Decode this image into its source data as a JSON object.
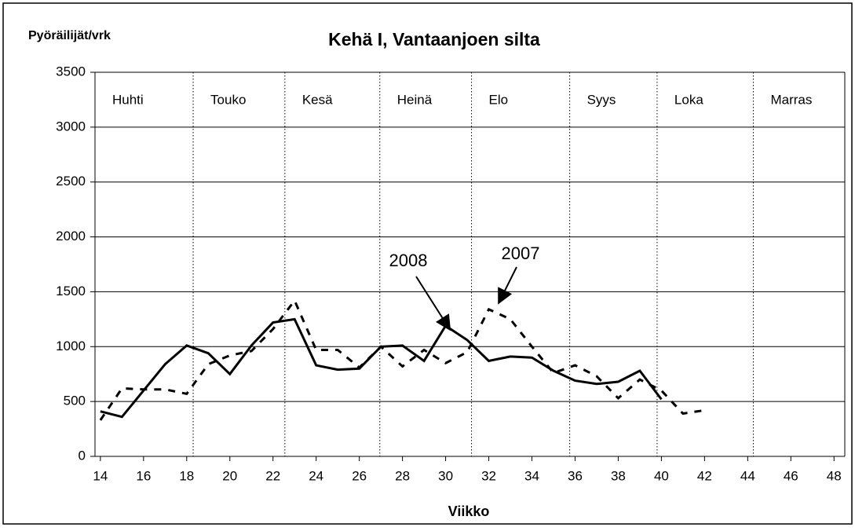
{
  "chart_data": {
    "type": "line",
    "title": "Kehä I, Vantaanjoen silta",
    "y_label": "Pyöräilijät/vrk",
    "x_label": "Viikko",
    "series": [
      {
        "name": "2008",
        "color": "#000000",
        "dash": "solid",
        "x": [
          14,
          15,
          16,
          17,
          18,
          19,
          20,
          21,
          22,
          23,
          24,
          25,
          26,
          27,
          28,
          29,
          30,
          31,
          32,
          33,
          34,
          35,
          36,
          37,
          38,
          39,
          40
        ],
        "values": [
          410,
          360,
          600,
          840,
          1010,
          940,
          750,
          1010,
          1220,
          1250,
          830,
          790,
          800,
          1000,
          1010,
          870,
          1190,
          1060,
          870,
          910,
          900,
          780,
          690,
          660,
          680,
          780,
          520
        ]
      },
      {
        "name": "2007",
        "color": "#000000",
        "dash": "dashed",
        "x": [
          14,
          15,
          16,
          17,
          18,
          19,
          20,
          21,
          22,
          23,
          24,
          25,
          26,
          27,
          28,
          29,
          30,
          31,
          32,
          33,
          34,
          35,
          36,
          37,
          38,
          39,
          40,
          41,
          42
        ],
        "values": [
          330,
          620,
          610,
          610,
          570,
          840,
          920,
          960,
          1160,
          1420,
          970,
          970,
          810,
          1000,
          820,
          970,
          850,
          950,
          1340,
          1250,
          1000,
          760,
          830,
          730,
          530,
          700,
          600,
          390,
          420
        ]
      }
    ],
    "months": [
      "Huhti",
      "Touko",
      "Kesä",
      "Heinä",
      "Elo",
      "Syys",
      "Loka",
      "Marras"
    ],
    "month_lines": [
      18.3,
      22.55,
      26.95,
      31.2,
      35.75,
      39.8,
      44.26
    ],
    "xlim": [
      13.75,
      48.5
    ],
    "xticks": [
      14,
      16,
      18,
      20,
      22,
      24,
      26,
      28,
      30,
      32,
      34,
      36,
      38,
      40,
      42,
      44,
      46,
      48
    ],
    "ylim": [
      0,
      3500
    ],
    "yticks": [
      0,
      500,
      1000,
      1500,
      2000,
      2500,
      3000,
      3500
    ],
    "grid": true
  }
}
